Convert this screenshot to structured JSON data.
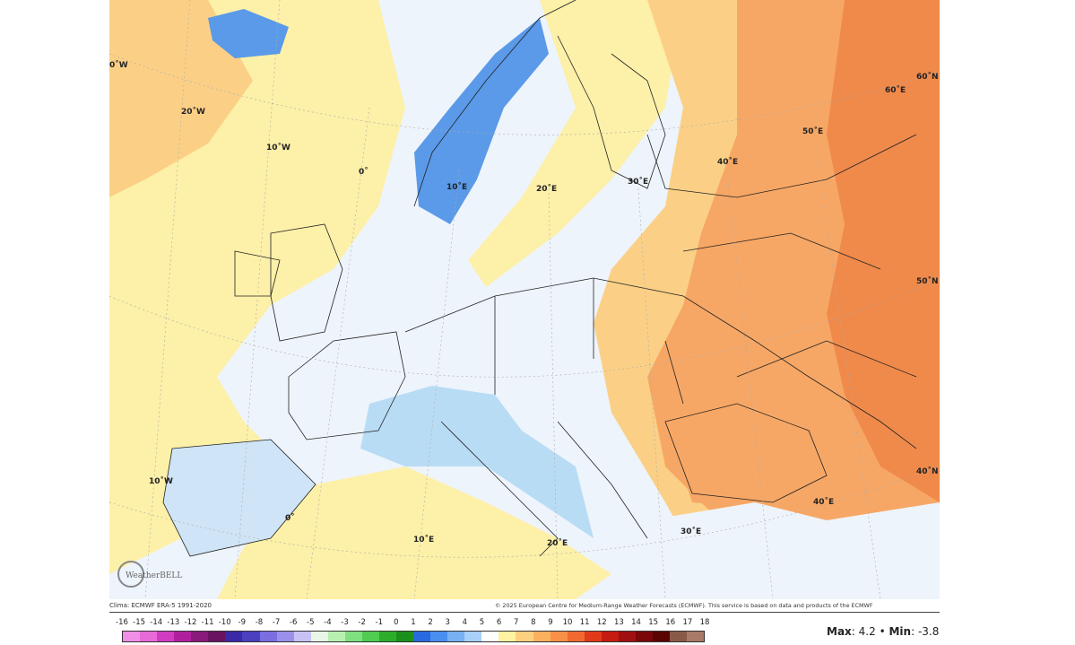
{
  "map": {
    "fill_colors": {
      "near_zero": "#eef4fb",
      "slight_warm": "#fdf0a8",
      "warm": "#fbd086",
      "warmer": "#f7a765",
      "warmest": "#f08a4b",
      "cool": "#b9dcf5",
      "cold": "#5a9ae8"
    },
    "graticule_labels": [
      "0˚W",
      "20˚W",
      "10˚W",
      "0˚",
      "10˚E",
      "20˚E",
      "30˚E",
      "40˚E",
      "50˚E",
      "60˚E",
      "60˚N",
      "50˚N",
      "40˚N",
      "10˚W",
      "0˚",
      "10˚E",
      "20˚E",
      "30˚E",
      "40˚E"
    ],
    "logo": "WeatherBELL"
  },
  "footer": {
    "left_credit": "Clima: ECMWF ERA-5 1991-2020",
    "right_credit": "© 2025 European Centre for Medium-Range Weather Forecasts (ECMWF). This service is based on data and products of the ECMWF"
  },
  "legend": {
    "ticks": [
      "-16",
      "-15",
      "-14",
      "-13",
      "-12",
      "-11",
      "-10",
      "-9",
      "-8",
      "-7",
      "-6",
      "-5",
      "-4",
      "-3",
      "-2",
      "-1",
      "0",
      "1",
      "2",
      "3",
      "4",
      "5",
      "6",
      "7",
      "8",
      "9",
      "10",
      "11",
      "12",
      "13",
      "14",
      "15",
      "16",
      "17",
      "18"
    ],
    "colors": [
      "#f08ee8",
      "#e86ad8",
      "#d23cc2",
      "#b0209e",
      "#8a1a7c",
      "#6a1460",
      "#3a2aa8",
      "#4a40c0",
      "#7a6ee0",
      "#9a90ea",
      "#c8c2f4",
      "#e8f8e8",
      "#b8f0b0",
      "#80e080",
      "#50cc50",
      "#2cae2c",
      "#1c901c",
      "#2a6ae0",
      "#4a8ef0",
      "#78b0f4",
      "#a8d0f8",
      "#ffffff",
      "#fff2a0",
      "#fdd080",
      "#fbb060",
      "#f89048",
      "#f06a30",
      "#e03a1a",
      "#c41c10",
      "#a01010",
      "#7a0808",
      "#5a0404",
      "#8a5a48",
      "#a87a68"
    ],
    "stats": {
      "max_label": "Max",
      "max_value": "4.2",
      "separator": "•",
      "min_label": "Min",
      "min_value": "-3.8"
    }
  }
}
